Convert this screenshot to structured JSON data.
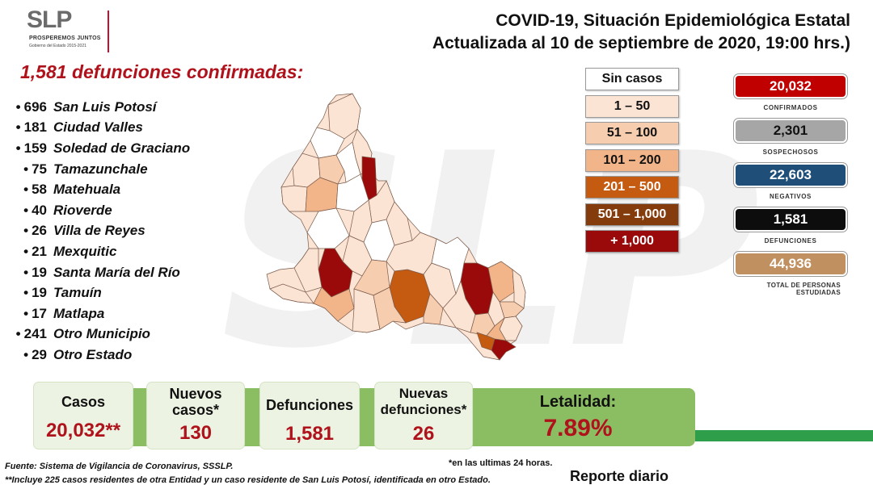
{
  "logo": {
    "text": "SLP",
    "sub1": "PROSPEREMOS JUNTOS",
    "sub2": "Gobierno del Estado 2015-2021"
  },
  "header": {
    "line1": "COVID-19, Situación Epidemiológica Estatal",
    "line2": "Actualizada al 10 de septiembre de 2020, 19:00 hrs.)"
  },
  "deaths_title": "1,581 defunciones confirmadas:",
  "municipalities": [
    {
      "num": "696",
      "name": "San Luis Potosí"
    },
    {
      "num": "181",
      "name": "Ciudad Valles"
    },
    {
      "num": "159",
      "name": "Soledad de Graciano"
    },
    {
      "num": "75",
      "name": "Tamazunchale"
    },
    {
      "num": "58",
      "name": "Matehuala"
    },
    {
      "num": "40",
      "name": "Rioverde"
    },
    {
      "num": "26",
      "name": "Villa de Reyes"
    },
    {
      "num": "21",
      "name": "Mexquitic"
    },
    {
      "num": "19",
      "name": "Santa María del Río"
    },
    {
      "num": "19",
      "name": "Tamuín"
    },
    {
      "num": "17",
      "name": "Matlapa"
    },
    {
      "num": "241",
      "name": "Otro Municipio"
    },
    {
      "num": "29",
      "name": "Otro Estado"
    }
  ],
  "legend": [
    {
      "label": "Sin casos",
      "color": "#ffffff",
      "text_color": "#111111"
    },
    {
      "label": "1 – 50",
      "color": "#fbe4d4",
      "text_color": "#111111"
    },
    {
      "label": "51 – 100",
      "color": "#f7cdaf",
      "text_color": "#111111"
    },
    {
      "label": "101 – 200",
      "color": "#f2b489",
      "text_color": "#111111"
    },
    {
      "label": "201 – 500",
      "color": "#c55a11",
      "text_color": "#ffffff"
    },
    {
      "label": "501 – 1,000",
      "color": "#843c0c",
      "text_color": "#ffffff"
    },
    {
      "label": "+ 1,000",
      "color": "#9b0a0a",
      "text_color": "#ffffff"
    }
  ],
  "stats": {
    "confirmed": {
      "value": "20,032",
      "label": "CONFIRMADOS",
      "color": "#c00000"
    },
    "suspected": {
      "value": "2,301",
      "label": "SOSPECHOSOS",
      "color": "#a6a6a6"
    },
    "negative": {
      "value": "22,603",
      "label": "NEGATIVOS",
      "color": "#1f4e79"
    },
    "deaths": {
      "value": "1,581",
      "label": "DEFUNCIONES",
      "color": "#0d0d0d"
    },
    "studied": {
      "value": "44,936",
      "label": "TOTAL DE PERSONAS ESTUDIADAS",
      "color": "#c09060"
    }
  },
  "summary": {
    "cases": {
      "label": "Casos",
      "value": "20,032**"
    },
    "new_cases": {
      "label": "Nuevos casos*",
      "value": "130"
    },
    "deaths": {
      "label": "Defunciones",
      "value": "1,581"
    },
    "new_deaths": {
      "label": "Nuevas defunciones*",
      "value": "26"
    },
    "lethality": {
      "label": "Letalidad:",
      "value": "7.89%"
    }
  },
  "footer": {
    "source": "Fuente: Sistema de Vigilancia de Coronavirus, SSSLP.",
    "note": "**Incluye 225 casos residentes de otra Entidad y un caso residente de San Luis Potosí, identificada en otro Estado.",
    "last24": "*en las ultimas 24 horas.",
    "report": "Reporte diario"
  }
}
